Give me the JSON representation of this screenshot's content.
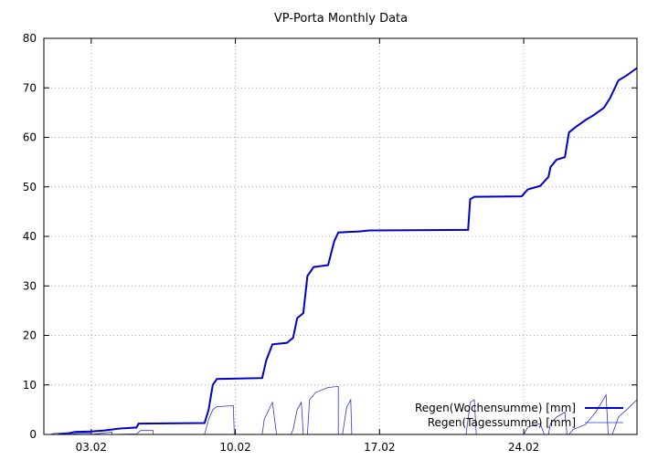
{
  "chart_data": {
    "type": "line",
    "title": "VP-Porta Monthly Data",
    "xlabel": "",
    "ylabel": "",
    "x_unit": "day of month (February)",
    "xlim": [
      0.7,
      29.5
    ],
    "ylim": [
      0,
      80
    ],
    "y_ticks": [
      0,
      10,
      20,
      30,
      40,
      50,
      60,
      70,
      80
    ],
    "x_ticks": [
      {
        "value": 3,
        "label": "03.02"
      },
      {
        "value": 10,
        "label": "10.02"
      },
      {
        "value": 17,
        "label": "17.02"
      },
      {
        "value": 24,
        "label": "24.02"
      }
    ],
    "grid": true,
    "legend_position": "bottom-right",
    "series": [
      {
        "name": "Regen(Wochensumme) [mm]",
        "color": "#0000cc",
        "style": "thick",
        "points": [
          [
            1.4,
            0.1
          ],
          [
            2.0,
            0.3
          ],
          [
            2.2,
            0.5
          ],
          [
            3.0,
            0.6
          ],
          [
            3.6,
            0.8
          ],
          [
            4.4,
            1.2
          ],
          [
            5.2,
            1.4
          ],
          [
            5.3,
            2.2
          ],
          [
            8.5,
            2.3
          ],
          [
            8.7,
            5.0
          ],
          [
            8.9,
            10.0
          ],
          [
            9.1,
            11.2
          ],
          [
            11.3,
            11.4
          ],
          [
            11.5,
            15.0
          ],
          [
            11.8,
            18.2
          ],
          [
            12.5,
            18.5
          ],
          [
            12.8,
            19.5
          ],
          [
            13.0,
            23.5
          ],
          [
            13.3,
            24.5
          ],
          [
            13.5,
            32.0
          ],
          [
            13.8,
            33.8
          ],
          [
            14.5,
            34.2
          ],
          [
            14.8,
            39.0
          ],
          [
            15.0,
            40.8
          ],
          [
            16.0,
            41.0
          ],
          [
            16.5,
            41.2
          ],
          [
            21.3,
            41.3
          ],
          [
            21.4,
            47.5
          ],
          [
            21.6,
            48.0
          ],
          [
            23.9,
            48.1
          ],
          [
            24.2,
            49.5
          ],
          [
            24.8,
            50.2
          ],
          [
            25.2,
            52.0
          ],
          [
            25.3,
            54.0
          ],
          [
            25.6,
            55.5
          ],
          [
            26.0,
            56.0
          ],
          [
            26.2,
            61.0
          ],
          [
            26.5,
            62.0
          ],
          [
            27.0,
            63.5
          ],
          [
            27.4,
            64.5
          ],
          [
            27.9,
            66.0
          ],
          [
            28.2,
            68.0
          ],
          [
            28.6,
            71.5
          ],
          [
            29.0,
            72.5
          ],
          [
            29.5,
            74.0
          ]
        ]
      },
      {
        "name": "Regen(Tagessumme) [mm]",
        "color": "#3333cc",
        "style": "thin",
        "points": [
          [
            1.0,
            0.0
          ],
          [
            1.2,
            0.2
          ],
          [
            1.9,
            0.3
          ],
          [
            2.0,
            0.0
          ],
          [
            2.3,
            0.2
          ],
          [
            3.0,
            0.3
          ],
          [
            3.0,
            0.0
          ],
          [
            3.6,
            0.3
          ],
          [
            4.0,
            0.5
          ],
          [
            4.0,
            0.0
          ],
          [
            5.2,
            0.1
          ],
          [
            5.4,
            0.8
          ],
          [
            6.0,
            0.8
          ],
          [
            6.0,
            0.0
          ],
          [
            8.5,
            0.0
          ],
          [
            8.7,
            3.0
          ],
          [
            8.9,
            5.0
          ],
          [
            9.1,
            5.6
          ],
          [
            9.9,
            5.8
          ],
          [
            9.95,
            0.0
          ],
          [
            11.3,
            0.0
          ],
          [
            11.4,
            3.0
          ],
          [
            11.6,
            4.8
          ],
          [
            11.8,
            6.5
          ],
          [
            12.0,
            0.0
          ],
          [
            12.7,
            0.0
          ],
          [
            12.8,
            1.0
          ],
          [
            13.0,
            5.0
          ],
          [
            13.2,
            6.5
          ],
          [
            13.3,
            0.0
          ],
          [
            13.5,
            0.0
          ],
          [
            13.6,
            7.0
          ],
          [
            13.9,
            8.5
          ],
          [
            14.5,
            9.5
          ],
          [
            15.0,
            9.7
          ],
          [
            15.0,
            0.0
          ],
          [
            15.2,
            0.0
          ],
          [
            15.4,
            5.5
          ],
          [
            15.6,
            7.0
          ],
          [
            15.65,
            0.0
          ],
          [
            21.2,
            0.0
          ],
          [
            21.4,
            6.5
          ],
          [
            21.6,
            7.0
          ],
          [
            21.7,
            0.0
          ],
          [
            24.0,
            0.0
          ],
          [
            24.2,
            1.5
          ],
          [
            24.8,
            2.2
          ],
          [
            25.0,
            0.0
          ],
          [
            25.2,
            0.0
          ],
          [
            25.3,
            2.2
          ],
          [
            25.6,
            3.5
          ],
          [
            26.0,
            4.5
          ],
          [
            26.1,
            0.0
          ],
          [
            26.2,
            0.0
          ],
          [
            26.4,
            1.0
          ],
          [
            27.0,
            2.0
          ],
          [
            27.5,
            4.5
          ],
          [
            28.0,
            8.0
          ],
          [
            28.1,
            0.0
          ],
          [
            28.3,
            0.0
          ],
          [
            28.6,
            3.5
          ],
          [
            29.0,
            5.0
          ],
          [
            29.5,
            7.0
          ]
        ]
      }
    ]
  }
}
